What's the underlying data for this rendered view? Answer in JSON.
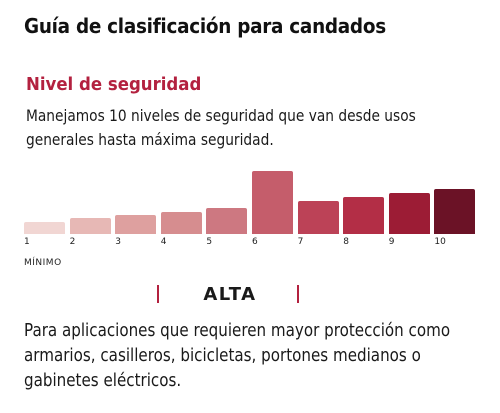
{
  "title": "Guía de clasificación para candados",
  "security": {
    "heading": "Nivel de seguridad",
    "description": "Manejamos 10 niveles de seguridad que van desde usos generales hasta máxima seguridad."
  },
  "scale": {
    "levels": [
      {
        "label": "1",
        "height": 0.18,
        "color": "#f1d6d3"
      },
      {
        "label": "2",
        "height": 0.25,
        "color": "#e7b8b5"
      },
      {
        "label": "3",
        "height": 0.3,
        "color": "#dea09f"
      },
      {
        "label": "4",
        "height": 0.35,
        "color": "#d68d8f"
      },
      {
        "label": "5",
        "height": 0.4,
        "color": "#cd7881"
      },
      {
        "label": "6",
        "height": 0.98,
        "color": "#c55d6b"
      },
      {
        "label": "7",
        "height": 0.52,
        "color": "#bc4257"
      },
      {
        "label": "8",
        "height": 0.58,
        "color": "#b32e46"
      },
      {
        "label": "9",
        "height": 0.64,
        "color": "#9c1c35"
      },
      {
        "label": "10",
        "height": 0.7,
        "color": "#6b1226"
      }
    ],
    "highlighted_level": "6",
    "min_label": "MÍNIMO"
  },
  "level": {
    "name": "ALTA",
    "accent_color": "#b3213f",
    "application": "Para aplicaciones que requieren mayor protección como armarios, casilleros, bicicletas, portones medianos o gabinetes eléctricos."
  }
}
